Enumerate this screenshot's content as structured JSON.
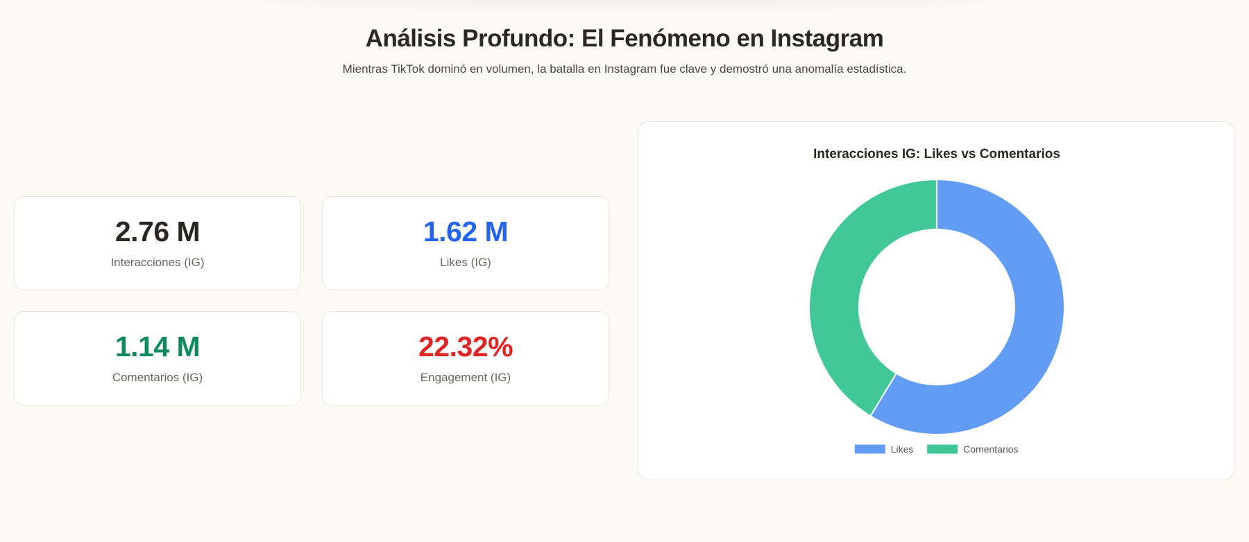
{
  "header": {
    "title": "Análisis Profundo: El Fenómeno en Instagram",
    "subtitle": "Mientras TikTok dominó en volumen, la batalla en Instagram fue clave y demostró una anomalía estadística."
  },
  "stats": [
    {
      "value": "2.76 M",
      "label": "Interacciones (IG)",
      "color": "#2a2622"
    },
    {
      "value": "1.62 M",
      "label": "Likes (IG)",
      "color": "#2563eb"
    },
    {
      "value": "1.14 M",
      "label": "Comentarios (IG)",
      "color": "#0f8a5f"
    },
    {
      "value": "22.32%",
      "label": "Engagement (IG)",
      "color": "#dc2626"
    }
  ],
  "chart_data": {
    "type": "pie",
    "title": "Interacciones IG: Likes vs Comentarios",
    "categories": [
      "Likes",
      "Comentarios"
    ],
    "values": [
      1.62,
      1.14
    ],
    "unit": "M",
    "colors": [
      "#629cf4",
      "#42c898"
    ],
    "donut": true,
    "legend_position": "bottom"
  }
}
